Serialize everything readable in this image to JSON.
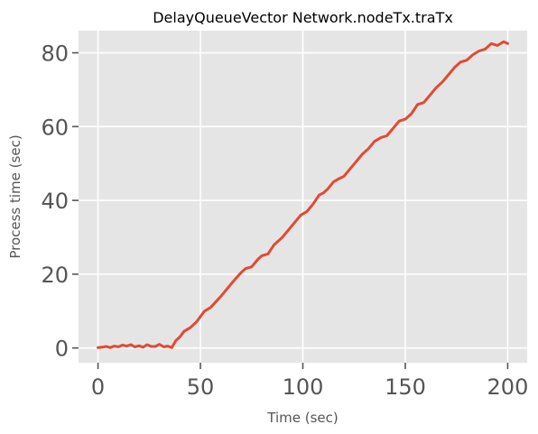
{
  "chart_data": {
    "type": "line",
    "title": "DelayQueueVector Network.nodeTx.traTx",
    "xlabel": "Time (sec)",
    "ylabel": "Process time (sec)",
    "xlim": [
      -9.5,
      209.5
    ],
    "ylim": [
      -4,
      86
    ],
    "xticks": [
      0,
      50,
      100,
      150,
      200
    ],
    "xtick_labels": [
      "0",
      "50",
      "100",
      "150",
      "200"
    ],
    "yticks": [
      0,
      20,
      40,
      60,
      80
    ],
    "ytick_labels": [
      "0",
      "20",
      "40",
      "60",
      "80"
    ],
    "grid": true,
    "legend": "none",
    "colors": {
      "background": "#e5e5e5",
      "grid": "#ffffff",
      "line": "#e24a33",
      "tick": "#555555"
    },
    "series": [
      {
        "x": [
          0,
          2,
          4,
          6,
          8,
          10,
          12,
          14,
          16,
          18,
          20,
          22,
          24,
          26,
          28,
          30,
          32,
          34,
          36,
          38,
          40,
          42,
          45,
          48,
          50,
          52,
          55,
          58,
          60,
          63,
          66,
          70,
          72,
          75,
          78,
          80,
          83,
          86,
          88,
          90,
          93,
          96,
          99,
          102,
          105,
          108,
          110,
          112,
          115,
          118,
          120,
          123,
          126,
          129,
          132,
          135,
          138,
          141,
          144,
          147,
          150,
          153,
          156,
          159,
          162,
          165,
          168,
          171,
          174,
          177,
          180,
          183,
          186,
          189,
          192,
          195,
          198,
          200
        ],
        "y": [
          0.1,
          0.2,
          0.4,
          0.1,
          0.5,
          0.3,
          0.8,
          0.5,
          0.9,
          0.3,
          0.6,
          0.2,
          0.9,
          0.4,
          0.4,
          1.0,
          0.3,
          0.5,
          0.1,
          2.0,
          3.0,
          4.5,
          5.5,
          7.0,
          8.5,
          10.0,
          11.0,
          12.8,
          14.0,
          16.0,
          18.0,
          20.5,
          21.5,
          22.0,
          24.0,
          25.0,
          25.5,
          28.0,
          29.0,
          30.0,
          32.0,
          34.0,
          36.0,
          37.0,
          39.0,
          41.5,
          42.0,
          43.0,
          45.0,
          46.0,
          46.5,
          48.5,
          50.5,
          52.5,
          54.0,
          56.0,
          57.0,
          57.5,
          59.5,
          61.5,
          62.0,
          63.5,
          66.0,
          66.5,
          68.5,
          70.5,
          72.0,
          74.0,
          76.0,
          77.5,
          78.0,
          79.5,
          80.5,
          81.0,
          82.5,
          82.0,
          83.0,
          82.5
        ]
      }
    ]
  }
}
